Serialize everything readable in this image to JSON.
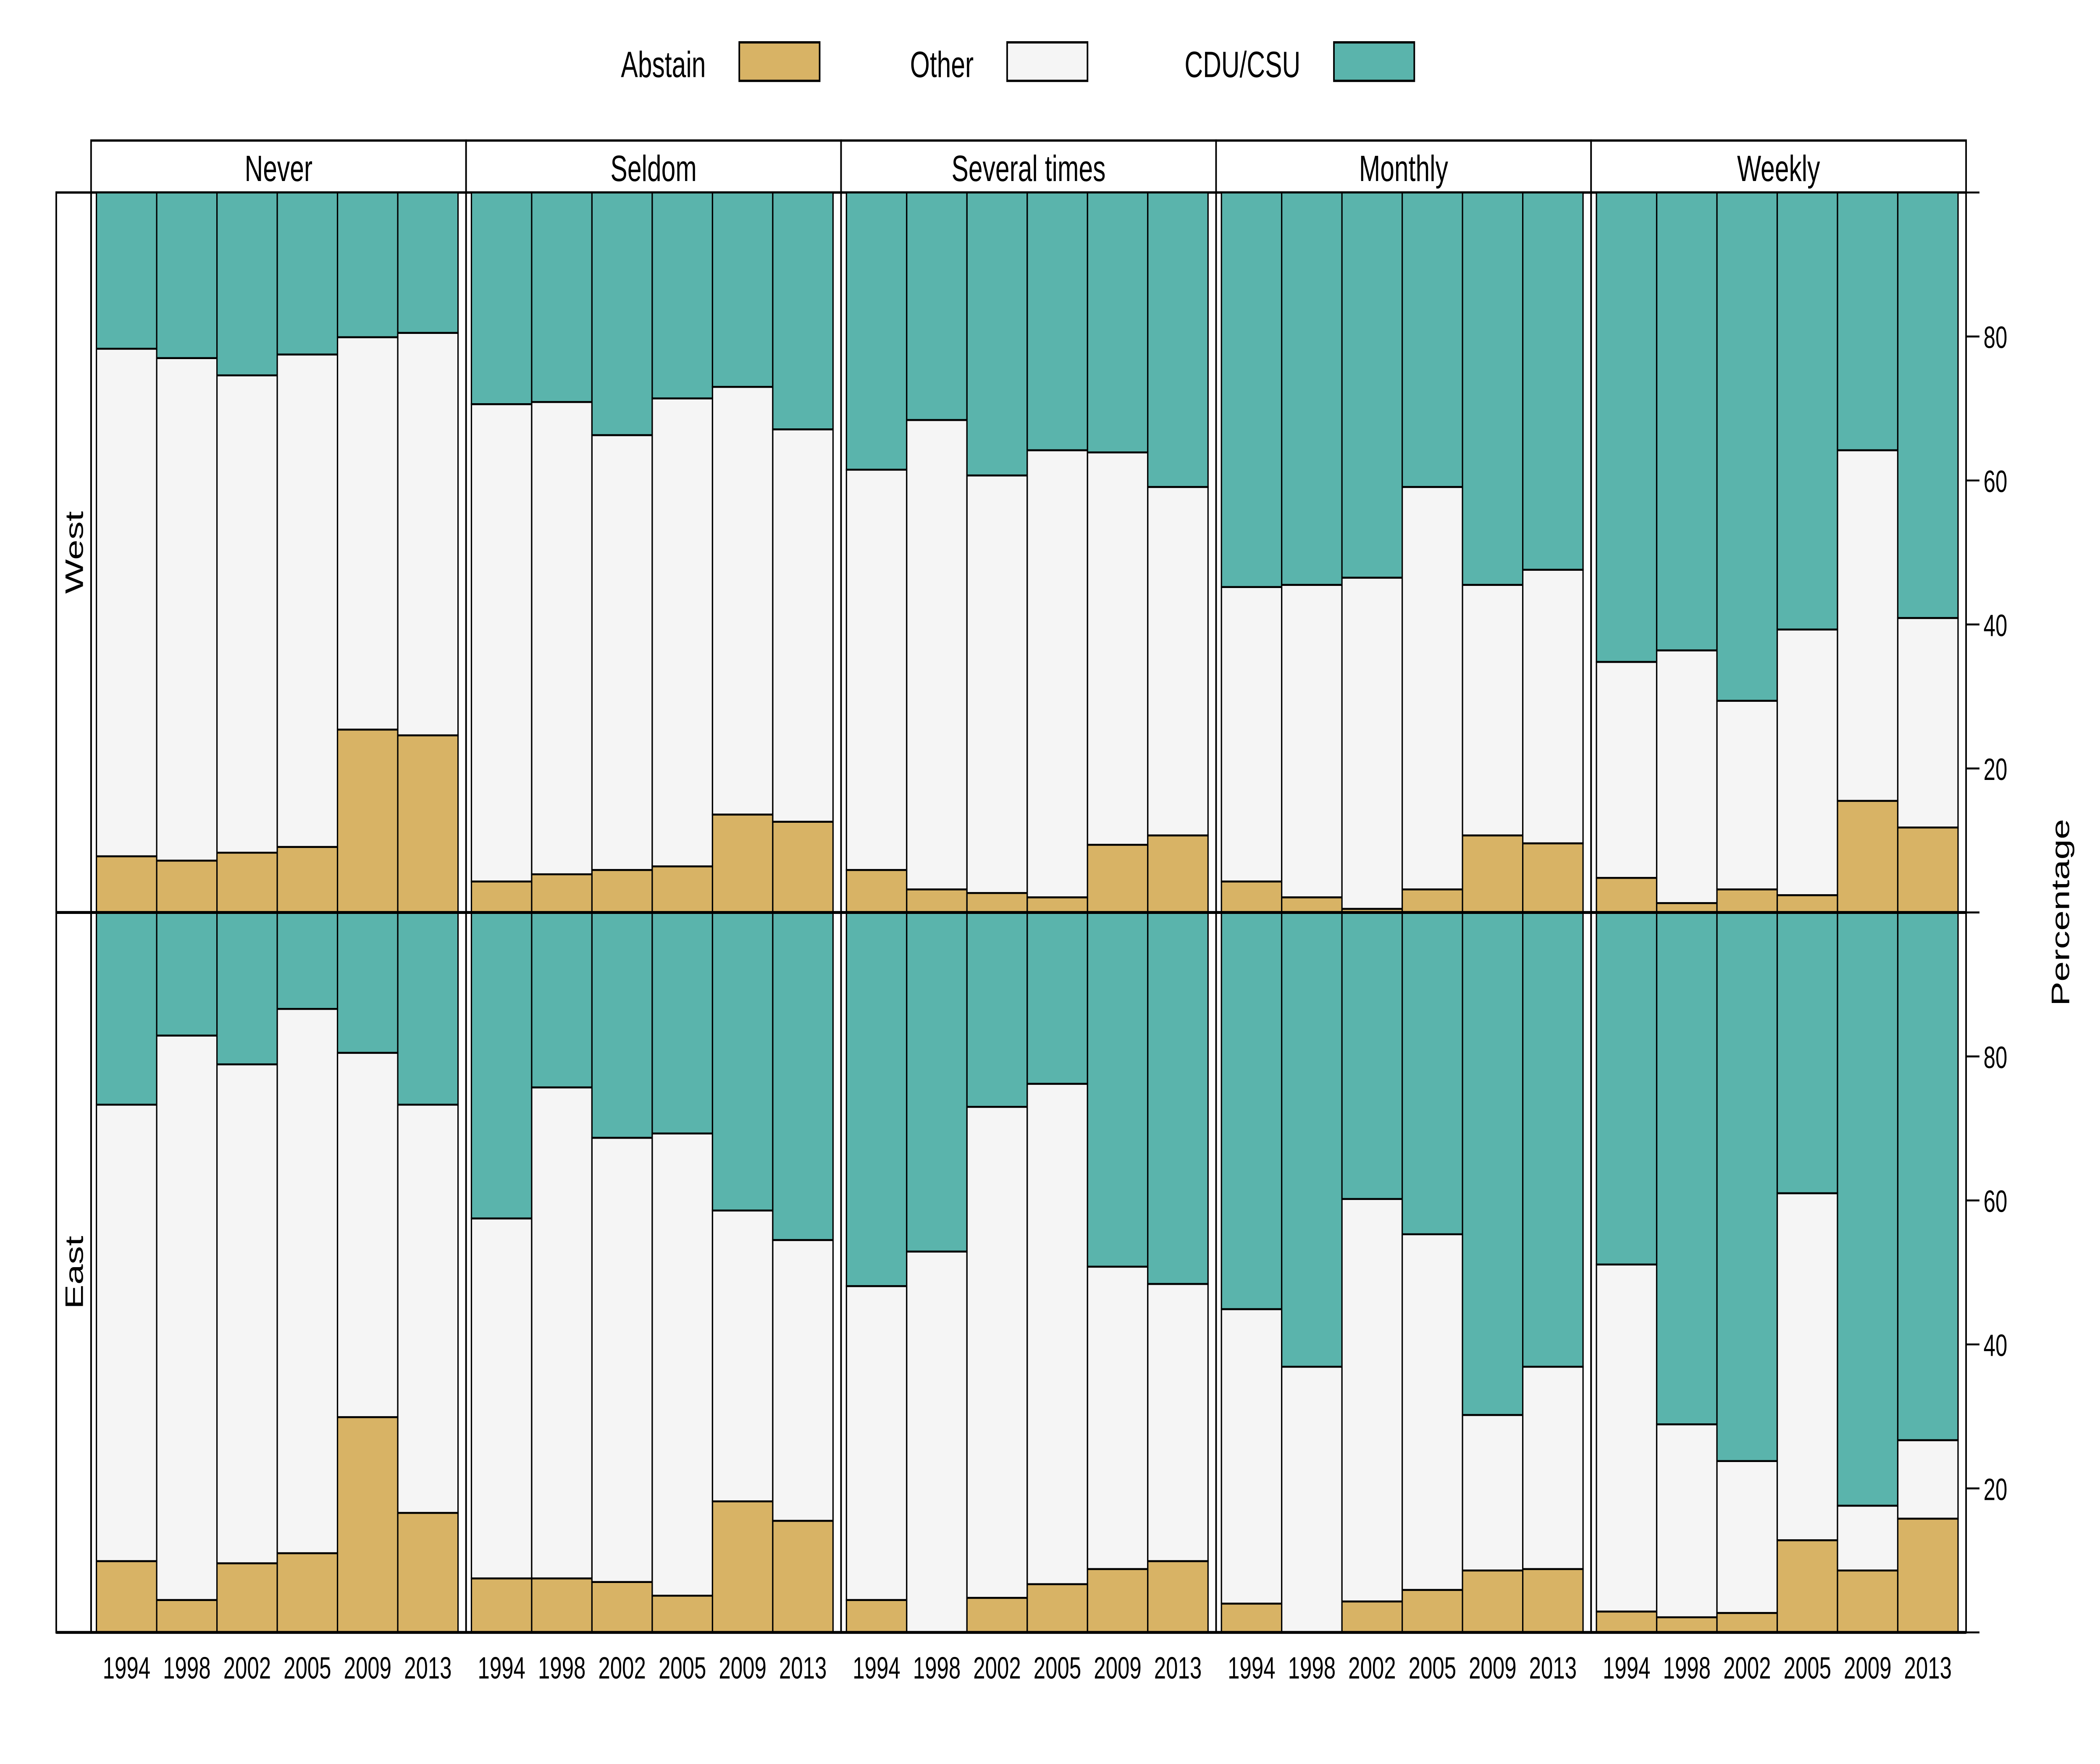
{
  "chart_data": {
    "type": "bar",
    "stacked": true,
    "legend": {
      "position": "top",
      "entries": [
        {
          "name": "Abstain",
          "color": "#D8B365"
        },
        {
          "name": "Other",
          "color": "#F5F5F5"
        },
        {
          "name": "CDU/CSU",
          "color": "#5AB4AC"
        }
      ]
    },
    "ylabel": "Percentage",
    "ylim": [
      0,
      100
    ],
    "yticks": [
      "20",
      "40",
      "60",
      "80"
    ],
    "categories": [
      "1994",
      "1998",
      "2002",
      "2005",
      "2009",
      "2013"
    ],
    "columns": [
      "Never",
      "Seldom",
      "Several times",
      "Monthly",
      "Weekly"
    ],
    "rows": [
      "West",
      "East"
    ],
    "panels": [
      {
        "row": "West",
        "column": "Never",
        "Abstain": [
          7.8,
          7.2,
          8.3,
          9.1,
          25.4,
          24.6
        ],
        "Other": [
          70.5,
          69.8,
          66.3,
          68.4,
          54.5,
          55.9
        ],
        "CDU/CSU": [
          21.7,
          23.0,
          25.4,
          22.5,
          20.1,
          19.5
        ]
      },
      {
        "row": "West",
        "column": "Seldom",
        "Abstain": [
          4.3,
          5.3,
          5.9,
          6.4,
          13.6,
          12.6
        ],
        "Other": [
          66.3,
          65.6,
          60.4,
          65.0,
          59.4,
          54.5
        ],
        "CDU/CSU": [
          29.4,
          29.1,
          33.7,
          28.6,
          27.0,
          32.9
        ]
      },
      {
        "row": "West",
        "column": "Several times",
        "Abstain": [
          5.9,
          3.2,
          2.7,
          2.1,
          9.4,
          10.7
        ],
        "Other": [
          55.6,
          65.2,
          58.0,
          62.1,
          54.5,
          48.4
        ],
        "CDU/CSU": [
          38.5,
          31.6,
          39.3,
          35.8,
          36.1,
          40.9
        ]
      },
      {
        "row": "West",
        "column": "Monthly",
        "Abstain": [
          4.3,
          2.1,
          0.5,
          3.2,
          10.7,
          9.6
        ],
        "Other": [
          40.9,
          43.4,
          46.0,
          55.9,
          34.8,
          38.0
        ],
        "CDU/CSU": [
          54.8,
          54.5,
          53.5,
          40.9,
          54.5,
          52.4
        ]
      },
      {
        "row": "West",
        "column": "Weekly",
        "Abstain": [
          4.8,
          1.3,
          3.2,
          2.4,
          15.5,
          11.8
        ],
        "Other": [
          30.0,
          35.1,
          26.2,
          36.9,
          48.7,
          29.1
        ],
        "CDU/CSU": [
          65.2,
          63.6,
          70.6,
          60.7,
          35.8,
          59.1
        ]
      },
      {
        "row": "East",
        "column": "Never",
        "Abstain": [
          9.9,
          4.5,
          9.6,
          11.0,
          29.9,
          16.6
        ],
        "Other": [
          63.4,
          78.4,
          69.3,
          75.6,
          50.6,
          56.7
        ],
        "CDU/CSU": [
          26.7,
          17.1,
          21.1,
          13.4,
          19.5,
          26.7
        ]
      },
      {
        "row": "East",
        "column": "Seldom",
        "Abstain": [
          7.5,
          7.5,
          7.0,
          5.1,
          18.2,
          15.5
        ],
        "Other": [
          50.0,
          68.2,
          61.7,
          64.2,
          40.4,
          39.0
        ],
        "CDU/CSU": [
          42.5,
          24.3,
          31.3,
          30.7,
          41.4,
          45.5
        ]
      },
      {
        "row": "East",
        "column": "Several times",
        "Abstain": [
          4.5,
          0.0,
          4.8,
          6.7,
          8.8,
          9.9
        ],
        "Other": [
          43.6,
          52.9,
          68.2,
          69.5,
          42.0,
          38.5
        ],
        "CDU/CSU": [
          51.9,
          47.1,
          27.0,
          23.8,
          49.2,
          51.6
        ]
      },
      {
        "row": "East",
        "column": "Monthly",
        "Abstain": [
          4.0,
          0.0,
          4.3,
          5.9,
          8.6,
          8.8
        ],
        "Other": [
          40.9,
          36.9,
          55.9,
          49.4,
          21.6,
          28.1
        ],
        "CDU/CSU": [
          55.1,
          63.1,
          39.8,
          44.7,
          69.8,
          63.1
        ]
      },
      {
        "row": "East",
        "column": "Weekly",
        "Abstain": [
          2.9,
          2.1,
          2.7,
          12.8,
          8.6,
          15.8
        ],
        "Other": [
          48.2,
          26.8,
          21.1,
          48.2,
          9.0,
          10.9
        ],
        "CDU/CSU": [
          48.9,
          71.1,
          76.2,
          39.0,
          82.4,
          73.3
        ]
      }
    ]
  }
}
